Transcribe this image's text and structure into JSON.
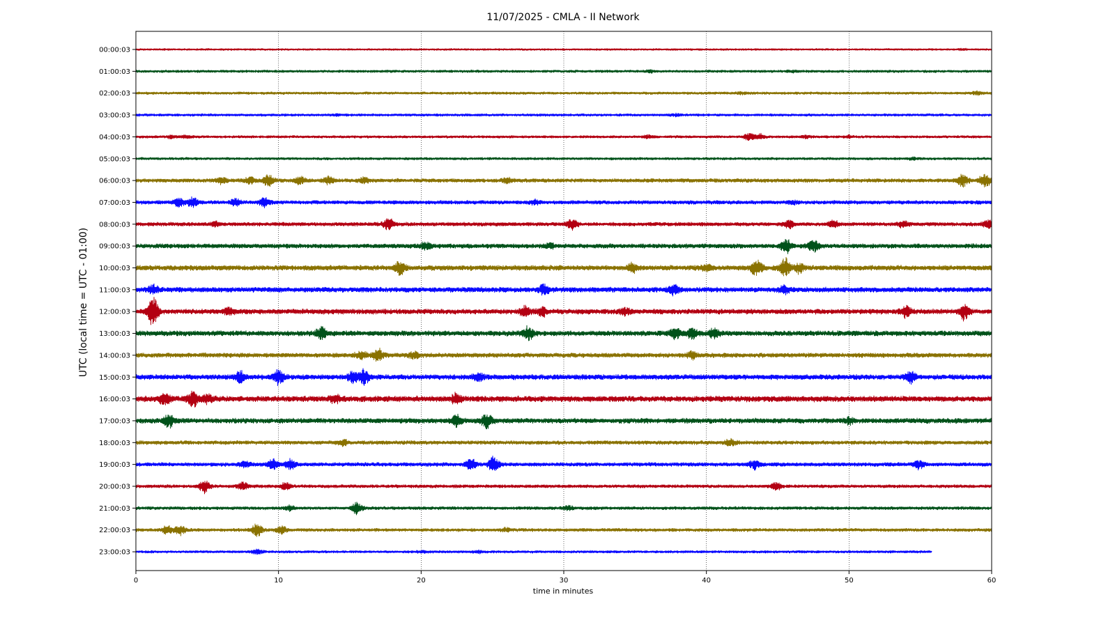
{
  "chart_data": {
    "type": "line",
    "title": "11/07/2025 - CMLA - II Network",
    "xlabel": "time in minutes",
    "ylabel": "UTC (local time = UTC - 01:00)",
    "xlim": [
      0,
      60
    ],
    "xticks": [
      0,
      10,
      20,
      30,
      40,
      50,
      60
    ],
    "grid": "vertical-dotted",
    "trace_colors": [
      "#b30012",
      "#00521a",
      "#8a7200",
      "#0a0aff"
    ],
    "rows": [
      {
        "label": "00:00:03",
        "color": "#b30012",
        "amp": 3,
        "end": 60,
        "events": [
          [
            58,
            2
          ]
        ]
      },
      {
        "label": "01:00:03",
        "color": "#00521a",
        "amp": 4,
        "end": 60,
        "events": [
          [
            36,
            3
          ],
          [
            46,
            3
          ]
        ]
      },
      {
        "label": "02:00:03",
        "color": "#8a7200",
        "amp": 4,
        "end": 60,
        "events": [
          [
            42.5,
            3
          ],
          [
            59,
            5
          ]
        ]
      },
      {
        "label": "03:00:03",
        "color": "#0a0aff",
        "amp": 4,
        "end": 60,
        "events": [
          [
            14,
            2
          ],
          [
            37.8,
            3
          ]
        ]
      },
      {
        "label": "04:00:03",
        "color": "#b30012",
        "amp": 4,
        "end": 60,
        "events": [
          [
            2.5,
            4
          ],
          [
            3.5,
            4
          ],
          [
            36,
            4
          ],
          [
            43,
            10
          ],
          [
            43.7,
            8
          ],
          [
            47,
            3
          ],
          [
            50,
            3
          ]
        ]
      },
      {
        "label": "05:00:03",
        "color": "#00521a",
        "amp": 4,
        "end": 60,
        "events": [
          [
            54.5,
            3
          ]
        ]
      },
      {
        "label": "06:00:03",
        "color": "#8a7200",
        "amp": 6,
        "end": 60,
        "events": [
          [
            6,
            10
          ],
          [
            8,
            9
          ],
          [
            9.3,
            18
          ],
          [
            11.5,
            12
          ],
          [
            13.5,
            10
          ],
          [
            16,
            8
          ],
          [
            26,
            6
          ],
          [
            58,
            18
          ],
          [
            59.5,
            22
          ]
        ]
      },
      {
        "label": "07:00:03",
        "color": "#0a0aff",
        "amp": 6,
        "end": 60,
        "events": [
          [
            3,
            14
          ],
          [
            4,
            16
          ],
          [
            7,
            10
          ],
          [
            9,
            14
          ],
          [
            28,
            6
          ],
          [
            46,
            4
          ]
        ]
      },
      {
        "label": "08:00:03",
        "color": "#b30012",
        "amp": 6,
        "end": 60,
        "events": [
          [
            5.6,
            6
          ],
          [
            17.7,
            18
          ],
          [
            30.6,
            15
          ],
          [
            45.8,
            12
          ],
          [
            48.9,
            10
          ],
          [
            53.8,
            8
          ],
          [
            59.8,
            14
          ]
        ]
      },
      {
        "label": "09:00:03",
        "color": "#00521a",
        "amp": 7,
        "end": 60,
        "events": [
          [
            20.3,
            10
          ],
          [
            45.6,
            20
          ],
          [
            47.5,
            18
          ],
          [
            29,
            7
          ]
        ]
      },
      {
        "label": "10:00:03",
        "color": "#8a7200",
        "amp": 8,
        "end": 60,
        "events": [
          [
            18.5,
            20
          ],
          [
            34.8,
            14
          ],
          [
            40,
            10
          ],
          [
            43.5,
            26
          ],
          [
            45.5,
            30
          ],
          [
            46.5,
            14
          ]
        ]
      },
      {
        "label": "11:00:03",
        "color": "#0a0aff",
        "amp": 8,
        "end": 60,
        "events": [
          [
            1.2,
            12
          ],
          [
            28.6,
            14
          ],
          [
            37.7,
            14
          ],
          [
            45.5,
            10
          ]
        ]
      },
      {
        "label": "12:00:03",
        "color": "#b30012",
        "amp": 8,
        "end": 60,
        "events": [
          [
            1.2,
            45
          ],
          [
            6.5,
            10
          ],
          [
            27.3,
            14
          ],
          [
            28.5,
            12
          ],
          [
            34.3,
            10
          ],
          [
            54,
            16
          ],
          [
            58.1,
            22
          ]
        ]
      },
      {
        "label": "13:00:03",
        "color": "#00521a",
        "amp": 8,
        "end": 60,
        "events": [
          [
            13,
            16
          ],
          [
            27.5,
            18
          ],
          [
            37.8,
            16
          ],
          [
            39,
            16
          ],
          [
            40.5,
            16
          ]
        ]
      },
      {
        "label": "14:00:03",
        "color": "#8a7200",
        "amp": 7,
        "end": 60,
        "events": [
          [
            15.8,
            14
          ],
          [
            17,
            18
          ],
          [
            19.5,
            10
          ],
          [
            39,
            10
          ]
        ]
      },
      {
        "label": "15:00:03",
        "color": "#0a0aff",
        "amp": 8,
        "end": 60,
        "events": [
          [
            7.3,
            16
          ],
          [
            10,
            20
          ],
          [
            15.2,
            16
          ],
          [
            16,
            22
          ],
          [
            24,
            12
          ],
          [
            54.3,
            20
          ]
        ]
      },
      {
        "label": "16:00:03",
        "color": "#b30012",
        "amp": 9,
        "end": 60,
        "events": [
          [
            2,
            18
          ],
          [
            4,
            20
          ],
          [
            5,
            12
          ],
          [
            22.5,
            14
          ],
          [
            14,
            10
          ]
        ]
      },
      {
        "label": "17:00:03",
        "color": "#00521a",
        "amp": 8,
        "end": 60,
        "events": [
          [
            2.3,
            20
          ],
          [
            22.5,
            16
          ],
          [
            24.6,
            20
          ],
          [
            50,
            8
          ]
        ]
      },
      {
        "label": "18:00:03",
        "color": "#8a7200",
        "amp": 6,
        "end": 60,
        "events": [
          [
            14.5,
            8
          ],
          [
            41.7,
            10
          ]
        ]
      },
      {
        "label": "19:00:03",
        "color": "#0a0aff",
        "amp": 6,
        "end": 60,
        "events": [
          [
            7.7,
            10
          ],
          [
            9.6,
            16
          ],
          [
            10.8,
            14
          ],
          [
            23.5,
            18
          ],
          [
            25.1,
            24
          ],
          [
            43.4,
            14
          ],
          [
            54.9,
            12
          ]
        ]
      },
      {
        "label": "20:00:03",
        "color": "#b30012",
        "amp": 5,
        "end": 60,
        "events": [
          [
            4.8,
            20
          ],
          [
            7.5,
            12
          ],
          [
            10.5,
            10
          ],
          [
            44.9,
            12
          ]
        ]
      },
      {
        "label": "21:00:03",
        "color": "#00521a",
        "amp": 5,
        "end": 60,
        "events": [
          [
            10.8,
            8
          ],
          [
            15.5,
            16
          ],
          [
            30.3,
            6
          ]
        ]
      },
      {
        "label": "22:00:03",
        "color": "#8a7200",
        "amp": 5,
        "end": 60,
        "events": [
          [
            2.2,
            12
          ],
          [
            3.1,
            14
          ],
          [
            8.5,
            22
          ],
          [
            10.2,
            12
          ],
          [
            26,
            5
          ]
        ]
      },
      {
        "label": "23:00:03",
        "color": "#0a0aff",
        "amp": 4,
        "end": 55.8,
        "events": [
          [
            8.5,
            6
          ],
          [
            20,
            3
          ],
          [
            24,
            3
          ]
        ]
      }
    ]
  }
}
